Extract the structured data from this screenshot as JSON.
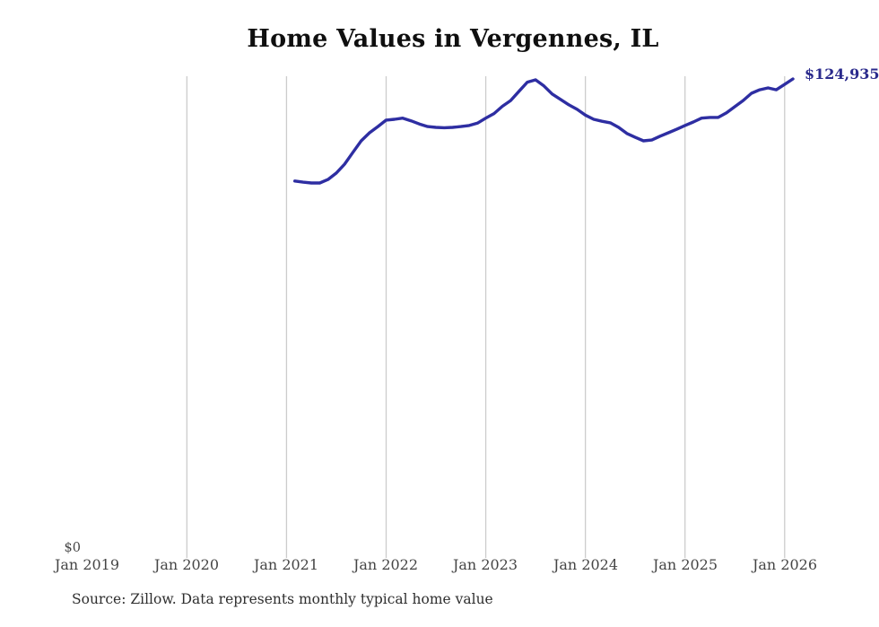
{
  "chart_data": {
    "type": "line",
    "title": "Home Values in Vergennes, IL",
    "xlabel": "",
    "ylabel": "",
    "ylim": [
      0,
      131000
    ],
    "grid": "vertical-only",
    "legend": "none",
    "y_zero_label": "$0",
    "last_value_label": "$124,935",
    "source": "Source: Zillow. Data represents monthly typical home value",
    "x_tick_labels": [
      "Jan 2019",
      "Jan 2020",
      "Jan 2021",
      "Jan 2022",
      "Jan 2023",
      "Jan 2024",
      "Jan 2025",
      "Jan 2026"
    ],
    "gridline_ticks": [
      "Jan 2020",
      "Jan 2021",
      "Jan 2022",
      "Jan 2023",
      "Jan 2024",
      "Jan 2025",
      "Jan 2026"
    ],
    "colors": {
      "line": "#2e2ea2",
      "end_label": "#2a2a8c",
      "gridline": "#cccccc",
      "title": "#0f0f0f",
      "axis_text": "#454545",
      "source_text": "#2e2e2e",
      "background": "#ffffff"
    },
    "series": [
      {
        "name": "Monthly typical home value",
        "x": [
          "2021-01",
          "2021-02",
          "2021-03",
          "2021-04",
          "2021-05",
          "2021-06",
          "2021-07",
          "2021-08",
          "2021-09",
          "2021-10",
          "2021-11",
          "2021-12",
          "2022-01",
          "2022-02",
          "2022-03",
          "2022-04",
          "2022-05",
          "2022-06",
          "2022-07",
          "2022-08",
          "2022-09",
          "2022-10",
          "2022-11",
          "2022-12",
          "2023-01",
          "2023-02",
          "2023-03",
          "2023-04",
          "2023-05",
          "2023-06",
          "2023-07",
          "2023-08",
          "2023-09",
          "2023-10",
          "2023-11",
          "2023-12",
          "2024-01",
          "2024-02",
          "2024-03",
          "2024-04",
          "2024-05",
          "2024-06",
          "2024-07",
          "2024-08",
          "2024-09",
          "2024-10",
          "2024-11",
          "2024-12",
          "2025-01",
          "2025-02",
          "2025-03",
          "2025-04",
          "2025-05",
          "2025-06",
          "2025-07",
          "2025-08",
          "2025-09",
          "2025-10",
          "2025-11",
          "2025-12",
          "2026-01"
        ],
        "values": [
          98300,
          98000,
          97800,
          97800,
          98700,
          100400,
          102700,
          105800,
          108800,
          110900,
          112500,
          114200,
          114400,
          114700,
          114000,
          113200,
          112500,
          112300,
          112200,
          112300,
          112500,
          112800,
          113400,
          114700,
          115900,
          117800,
          119300,
          121700,
          124100,
          124700,
          123100,
          121000,
          119600,
          118200,
          117000,
          115500,
          114400,
          113900,
          113500,
          112300,
          110700,
          109700,
          108800,
          109000,
          110000,
          110900,
          111800,
          112800,
          113700,
          114700,
          114900,
          114900,
          116100,
          117700,
          119300,
          121200,
          122100,
          122600,
          122100,
          123500,
          124935
        ]
      }
    ]
  }
}
